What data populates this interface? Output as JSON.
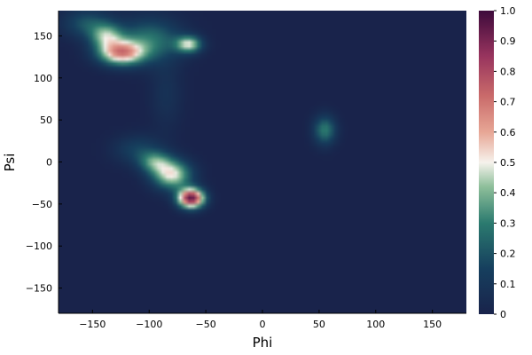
{
  "chart_data": {
    "type": "heatmap",
    "title": "",
    "xlabel": "Phi",
    "ylabel": "Psi",
    "xlim": [
      -180,
      180
    ],
    "ylim": [
      -180,
      180
    ],
    "x_ticks": [
      {
        "value": -150,
        "label": "−150"
      },
      {
        "value": -100,
        "label": "−100"
      },
      {
        "value": -50,
        "label": "−50"
      },
      {
        "value": 0,
        "label": "0"
      },
      {
        "value": 50,
        "label": "50"
      },
      {
        "value": 100,
        "label": "100"
      },
      {
        "value": 150,
        "label": "150"
      }
    ],
    "y_ticks": [
      {
        "value": -150,
        "label": "−150"
      },
      {
        "value": -100,
        "label": "−100"
      },
      {
        "value": -50,
        "label": "−50"
      },
      {
        "value": 0,
        "label": "0"
      },
      {
        "value": 50,
        "label": "50"
      },
      {
        "value": 100,
        "label": "100"
      },
      {
        "value": 150,
        "label": "150"
      }
    ],
    "colorbar": {
      "range": [
        0,
        1
      ],
      "ticks": [
        {
          "value": 0,
          "label": "0"
        },
        {
          "value": 0.1,
          "label": "0.1"
        },
        {
          "value": 0.2,
          "label": "0.2"
        },
        {
          "value": 0.3,
          "label": "0.3"
        },
        {
          "value": 0.4,
          "label": "0.4"
        },
        {
          "value": 0.5,
          "label": "0.5"
        },
        {
          "value": 0.6,
          "label": "0.6"
        },
        {
          "value": 0.7,
          "label": "0.7"
        },
        {
          "value": 0.8,
          "label": "0.8"
        },
        {
          "value": 0.9,
          "label": "0.9"
        },
        {
          "value": 1.0,
          "label": "1.0"
        }
      ],
      "colormap_stops": [
        {
          "value": 0.0,
          "color": "#19234b"
        },
        {
          "value": 0.15,
          "color": "#163f5e"
        },
        {
          "value": 0.3,
          "color": "#2b7a6f"
        },
        {
          "value": 0.42,
          "color": "#8ebf9a"
        },
        {
          "value": 0.5,
          "color": "#f6f2ec"
        },
        {
          "value": 0.6,
          "color": "#e7a695"
        },
        {
          "value": 0.72,
          "color": "#c96a6a"
        },
        {
          "value": 0.85,
          "color": "#98345e"
        },
        {
          "value": 1.0,
          "color": "#3d0a3b"
        }
      ]
    },
    "density_peaks": [
      {
        "phi": -125,
        "psi": 130,
        "amplitude": 0.62,
        "sigma_phi": 14,
        "sigma_psi": 10
      },
      {
        "phi": -138,
        "psi": 150,
        "amplitude": 0.35,
        "sigma_phi": 10,
        "sigma_psi": 10
      },
      {
        "phi": -65,
        "psi": 140,
        "amplitude": 0.45,
        "sigma_phi": 8,
        "sigma_psi": 7
      },
      {
        "phi": -100,
        "psi": 145,
        "amplitude": 0.28,
        "sigma_phi": 20,
        "sigma_psi": 18
      },
      {
        "phi": -155,
        "psi": 165,
        "amplitude": 0.2,
        "sigma_phi": 15,
        "sigma_psi": 12
      },
      {
        "phi": -63,
        "psi": -43,
        "amplitude": 0.95,
        "sigma_phi": 8,
        "sigma_psi": 8
      },
      {
        "phi": -80,
        "psi": -15,
        "amplitude": 0.5,
        "sigma_phi": 12,
        "sigma_psi": 12
      },
      {
        "phi": -95,
        "psi": 0,
        "amplitude": 0.3,
        "sigma_phi": 10,
        "sigma_psi": 9
      },
      {
        "phi": -110,
        "psi": 15,
        "amplitude": 0.15,
        "sigma_phi": 15,
        "sigma_psi": 12
      },
      {
        "phi": 55,
        "psi": 38,
        "amplitude": 0.3,
        "sigma_phi": 7,
        "sigma_psi": 12
      },
      {
        "phi": -85,
        "psi": 80,
        "amplitude": 0.08,
        "sigma_phi": 10,
        "sigma_psi": 30
      }
    ]
  }
}
